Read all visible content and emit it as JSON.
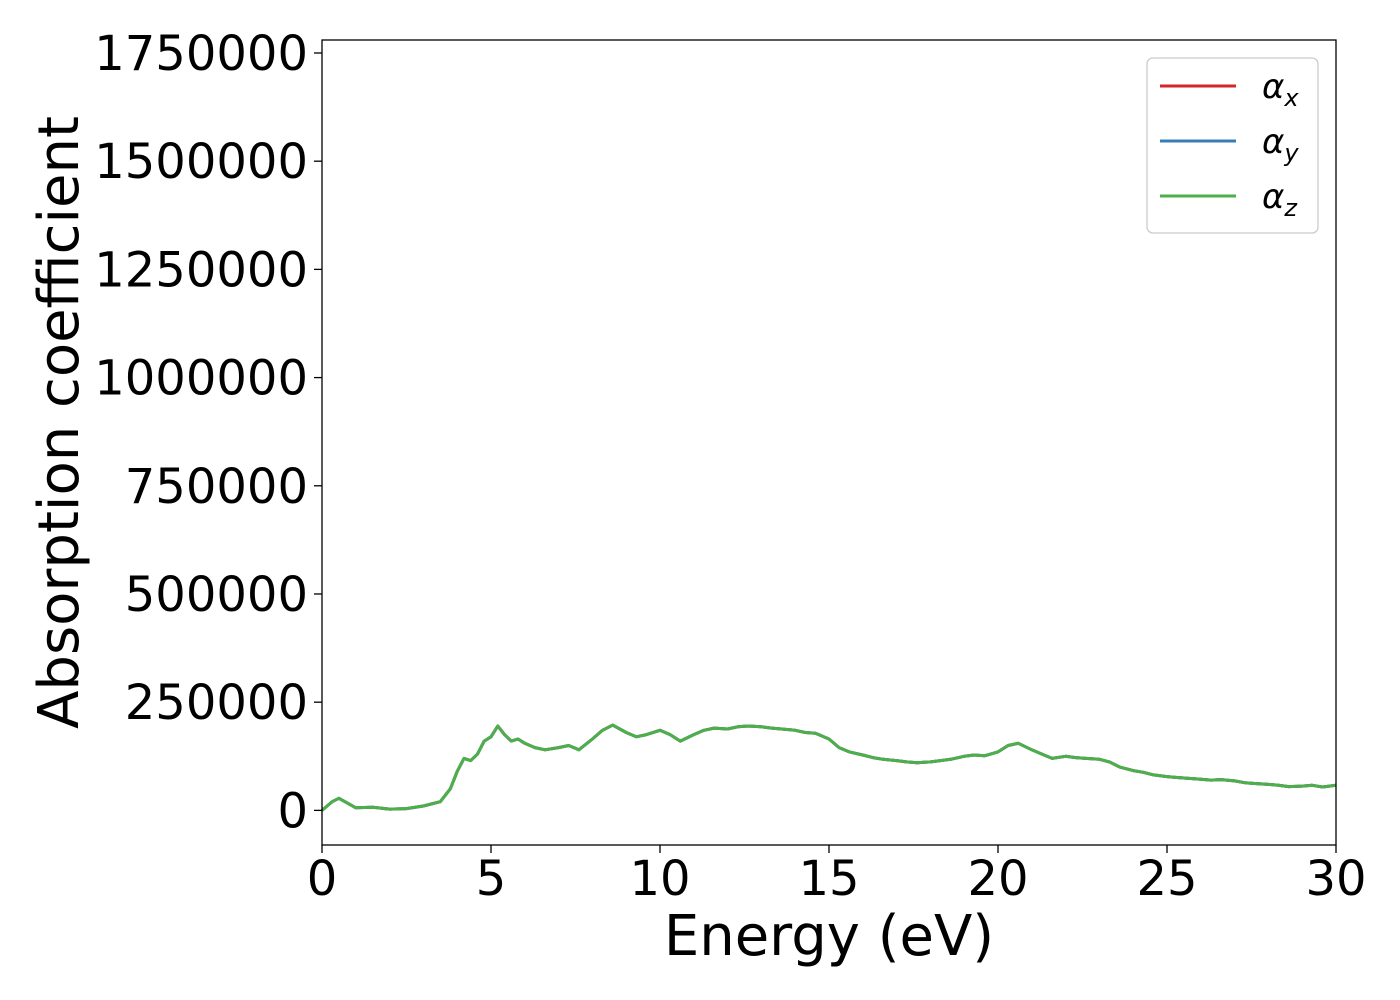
{
  "chart_data": {
    "type": "line",
    "xlabel": "Energy (eV)",
    "ylabel": "Absorption coefficient",
    "xlim": [
      0,
      30
    ],
    "ylim": [
      -80000,
      1780000
    ],
    "x_ticks": [
      0,
      5,
      10,
      15,
      20,
      25,
      30
    ],
    "x_tick_labels": [
      "0",
      "5",
      "10",
      "15",
      "20",
      "25",
      "30"
    ],
    "y_ticks": [
      0,
      250000,
      500000,
      750000,
      1000000,
      1250000,
      1500000,
      1750000
    ],
    "y_tick_labels": [
      "0",
      "250000",
      "500000",
      "750000",
      "1000000",
      "1250000",
      "1500000",
      "1750000"
    ],
    "grid": false,
    "legend_position": "top-right",
    "series": [
      {
        "name": "α",
        "subscript": "x",
        "color": "#d62728",
        "x": [
          0,
          0.3,
          0.5,
          0.8,
          1.0,
          1.5,
          2.0,
          2.5,
          3.0,
          3.5,
          3.8,
          4.0,
          4.2,
          4.4,
          4.6,
          4.8,
          5.0,
          5.2,
          5.4,
          5.6,
          5.8,
          6.0,
          6.3,
          6.6,
          7.0,
          7.3,
          7.6,
          8.0,
          8.3,
          8.6,
          9.0,
          9.3,
          9.6,
          10.0,
          10.3,
          10.6,
          11.0,
          11.3,
          11.6,
          12.0,
          12.3,
          12.6,
          13.0,
          13.3,
          13.6,
          14.0,
          14.3,
          14.6,
          15.0,
          15.3,
          15.6,
          16.0,
          16.3,
          16.6,
          17.0,
          17.3,
          17.6,
          18.0,
          18.3,
          18.6,
          19.0,
          19.3,
          19.6,
          20.0,
          20.3,
          20.6,
          21.0,
          21.3,
          21.6,
          22.0,
          22.3,
          22.6,
          23.0,
          23.3,
          23.6,
          24.0,
          24.3,
          24.6,
          25.0,
          25.3,
          25.6,
          26.0,
          26.3,
          26.6,
          27.0,
          27.3,
          27.6,
          28.0,
          28.3,
          28.6,
          29.0,
          29.3,
          29.6,
          30.0
        ],
        "values": [
          0,
          20000,
          28000,
          15000,
          6000,
          7000,
          3000,
          4000,
          10000,
          20000,
          50000,
          90000,
          120000,
          115000,
          130000,
          160000,
          170000,
          195000,
          175000,
          160000,
          165000,
          155000,
          145000,
          140000,
          145000,
          150000,
          140000,
          165000,
          185000,
          197000,
          180000,
          170000,
          175000,
          185000,
          175000,
          160000,
          175000,
          185000,
          190000,
          188000,
          193000,
          195000,
          193000,
          190000,
          188000,
          185000,
          180000,
          178000,
          165000,
          145000,
          135000,
          128000,
          122000,
          118000,
          115000,
          112000,
          110000,
          112000,
          115000,
          118000,
          125000,
          128000,
          126000,
          135000,
          150000,
          155000,
          140000,
          130000,
          120000,
          125000,
          122000,
          120000,
          118000,
          112000,
          100000,
          92000,
          88000,
          82000,
          78000,
          76000,
          74000,
          72000,
          70000,
          71000,
          68000,
          64000,
          62000,
          60000,
          58000,
          55000,
          56000,
          58000,
          54000,
          58000
        ]
      },
      {
        "name": "α",
        "subscript": "y",
        "color": "#377eb8",
        "x": [
          0,
          0.3,
          0.5,
          0.8,
          1.0,
          1.5,
          2.0,
          2.5,
          3.0,
          3.5,
          3.8,
          4.0,
          4.2,
          4.4,
          4.6,
          4.8,
          5.0,
          5.2,
          5.4,
          5.6,
          5.8,
          6.0,
          6.3,
          6.6,
          7.0,
          7.3,
          7.6,
          8.0,
          8.3,
          8.6,
          9.0,
          9.3,
          9.6,
          10.0,
          10.3,
          10.6,
          11.0,
          11.3,
          11.6,
          12.0,
          12.3,
          12.6,
          13.0,
          13.3,
          13.6,
          14.0,
          14.3,
          14.6,
          15.0,
          15.3,
          15.6,
          16.0,
          16.3,
          16.6,
          17.0,
          17.3,
          17.6,
          18.0,
          18.3,
          18.6,
          19.0,
          19.3,
          19.6,
          20.0,
          20.3,
          20.6,
          21.0,
          21.3,
          21.6,
          22.0,
          22.3,
          22.6,
          23.0,
          23.3,
          23.6,
          24.0,
          24.3,
          24.6,
          25.0,
          25.3,
          25.6,
          26.0,
          26.3,
          26.6,
          27.0,
          27.3,
          27.6,
          28.0,
          28.3,
          28.6,
          29.0,
          29.3,
          29.6,
          30.0
        ],
        "values": [
          0,
          20000,
          28000,
          15000,
          6000,
          7000,
          3000,
          4000,
          10000,
          20000,
          50000,
          90000,
          120000,
          115000,
          130000,
          160000,
          170000,
          195000,
          175000,
          160000,
          165000,
          155000,
          145000,
          140000,
          145000,
          150000,
          140000,
          165000,
          185000,
          197000,
          180000,
          170000,
          175000,
          185000,
          175000,
          160000,
          175000,
          185000,
          190000,
          188000,
          193000,
          195000,
          193000,
          190000,
          188000,
          185000,
          180000,
          178000,
          165000,
          145000,
          135000,
          128000,
          122000,
          118000,
          115000,
          112000,
          110000,
          112000,
          115000,
          118000,
          125000,
          128000,
          126000,
          135000,
          150000,
          155000,
          140000,
          130000,
          120000,
          125000,
          122000,
          120000,
          118000,
          112000,
          100000,
          92000,
          88000,
          82000,
          78000,
          76000,
          74000,
          72000,
          70000,
          71000,
          68000,
          64000,
          62000,
          60000,
          58000,
          55000,
          56000,
          58000,
          54000,
          58000
        ]
      },
      {
        "name": "α",
        "subscript": "z",
        "color": "#4daf4a",
        "x": [
          0,
          0.3,
          0.5,
          0.8,
          1.0,
          1.5,
          2.0,
          2.5,
          3.0,
          3.5,
          3.8,
          4.0,
          4.2,
          4.4,
          4.6,
          4.8,
          5.0,
          5.2,
          5.4,
          5.6,
          5.8,
          6.0,
          6.3,
          6.6,
          7.0,
          7.3,
          7.6,
          8.0,
          8.3,
          8.6,
          9.0,
          9.3,
          9.6,
          10.0,
          10.3,
          10.6,
          11.0,
          11.3,
          11.6,
          12.0,
          12.3,
          12.6,
          13.0,
          13.3,
          13.6,
          14.0,
          14.3,
          14.6,
          15.0,
          15.3,
          15.6,
          16.0,
          16.3,
          16.6,
          17.0,
          17.3,
          17.6,
          18.0,
          18.3,
          18.6,
          19.0,
          19.3,
          19.6,
          20.0,
          20.3,
          20.6,
          21.0,
          21.3,
          21.6,
          22.0,
          22.3,
          22.6,
          23.0,
          23.3,
          23.6,
          24.0,
          24.3,
          24.6,
          25.0,
          25.3,
          25.6,
          26.0,
          26.3,
          26.6,
          27.0,
          27.3,
          27.6,
          28.0,
          28.3,
          28.6,
          29.0,
          29.3,
          29.6,
          30.0
        ],
        "values": [
          0,
          20000,
          28000,
          15000,
          6000,
          7000,
          3000,
          4000,
          10000,
          20000,
          50000,
          90000,
          120000,
          115000,
          130000,
          160000,
          170000,
          195000,
          175000,
          160000,
          165000,
          155000,
          145000,
          140000,
          145000,
          150000,
          140000,
          165000,
          185000,
          197000,
          180000,
          170000,
          175000,
          185000,
          175000,
          160000,
          175000,
          185000,
          190000,
          188000,
          193000,
          195000,
          193000,
          190000,
          188000,
          185000,
          180000,
          178000,
          165000,
          145000,
          135000,
          128000,
          122000,
          118000,
          115000,
          112000,
          110000,
          112000,
          115000,
          118000,
          125000,
          128000,
          126000,
          135000,
          150000,
          155000,
          140000,
          130000,
          120000,
          125000,
          122000,
          120000,
          118000,
          112000,
          100000,
          92000,
          88000,
          82000,
          78000,
          76000,
          74000,
          72000,
          70000,
          71000,
          68000,
          64000,
          62000,
          60000,
          58000,
          55000,
          56000,
          58000,
          54000,
          58000
        ]
      }
    ]
  }
}
